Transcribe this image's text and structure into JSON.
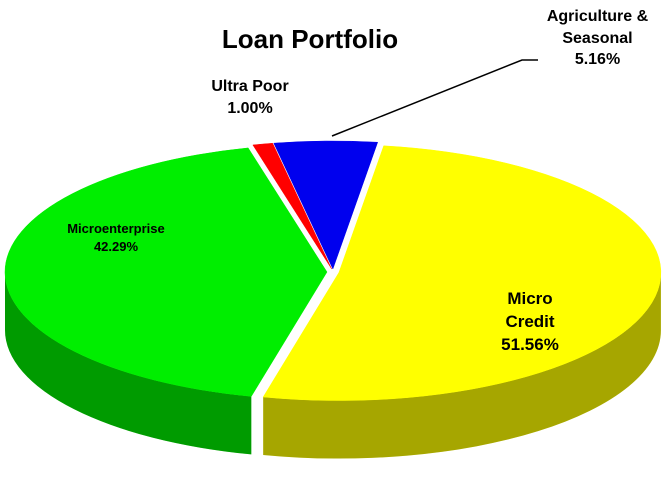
{
  "chart_data": {
    "type": "pie",
    "title": "Loan Portfolio",
    "categories": [
      "Micro Credit",
      "Microenterprise",
      "Ultra Poor",
      "Agriculture & Seasonal"
    ],
    "values": [
      51.56,
      42.29,
      1.0,
      5.16
    ],
    "value_labels": [
      "51.56%",
      "42.29%",
      "1.00%",
      "5.16%"
    ],
    "colors": [
      "#ffff00",
      "#00ee00",
      "#ff0000",
      "#0000ee"
    ]
  }
}
